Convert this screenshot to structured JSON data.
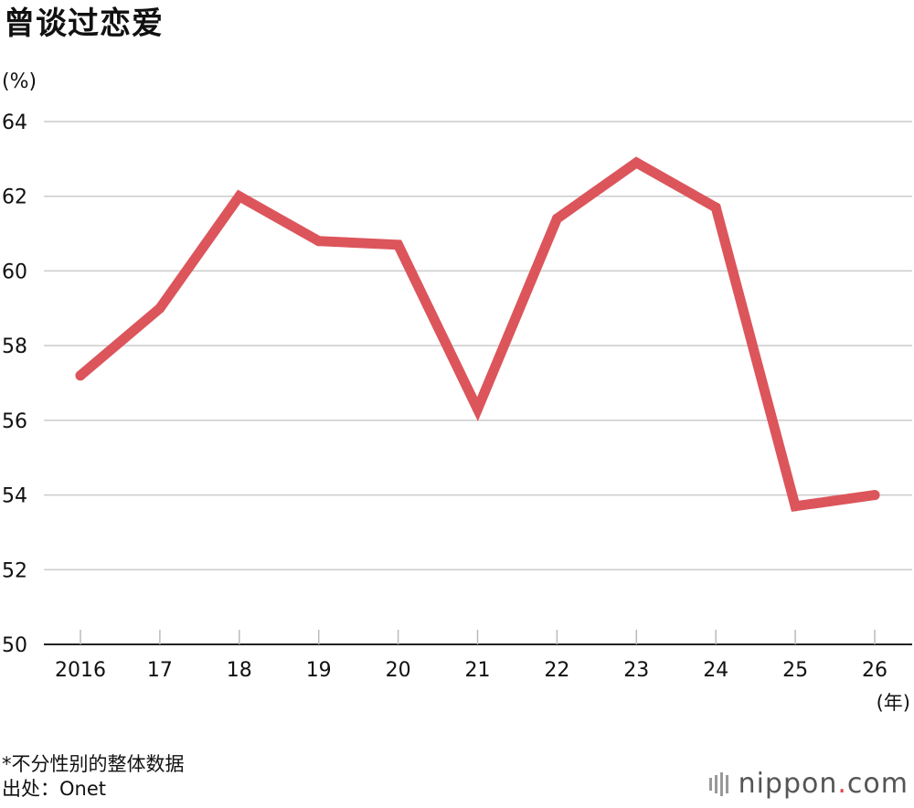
{
  "title": "曾谈过恋爱",
  "unit_label": "(%)",
  "x_unit_label": "(年)",
  "notes": {
    "note1": "*不分性别的整体数据",
    "note2": "出处：Onet"
  },
  "logo": {
    "name": "nippon",
    "dot": ".",
    "suffix": "com"
  },
  "colors": {
    "line": "#dc555b",
    "grid": "#cccccc",
    "axis": "#222222"
  },
  "chart_data": {
    "type": "line",
    "categories": [
      "2016",
      "17",
      "18",
      "19",
      "20",
      "21",
      "22",
      "23",
      "24",
      "25",
      "26"
    ],
    "series": [
      {
        "values": [
          57.2,
          59.0,
          62.0,
          60.8,
          60.7,
          56.3,
          61.4,
          62.9,
          61.7,
          53.7,
          54.0
        ]
      }
    ],
    "ylim": [
      50,
      64
    ],
    "yticks": [
      50,
      52,
      54,
      56,
      58,
      60,
      62,
      64
    ],
    "grid": true,
    "legend": "none"
  }
}
